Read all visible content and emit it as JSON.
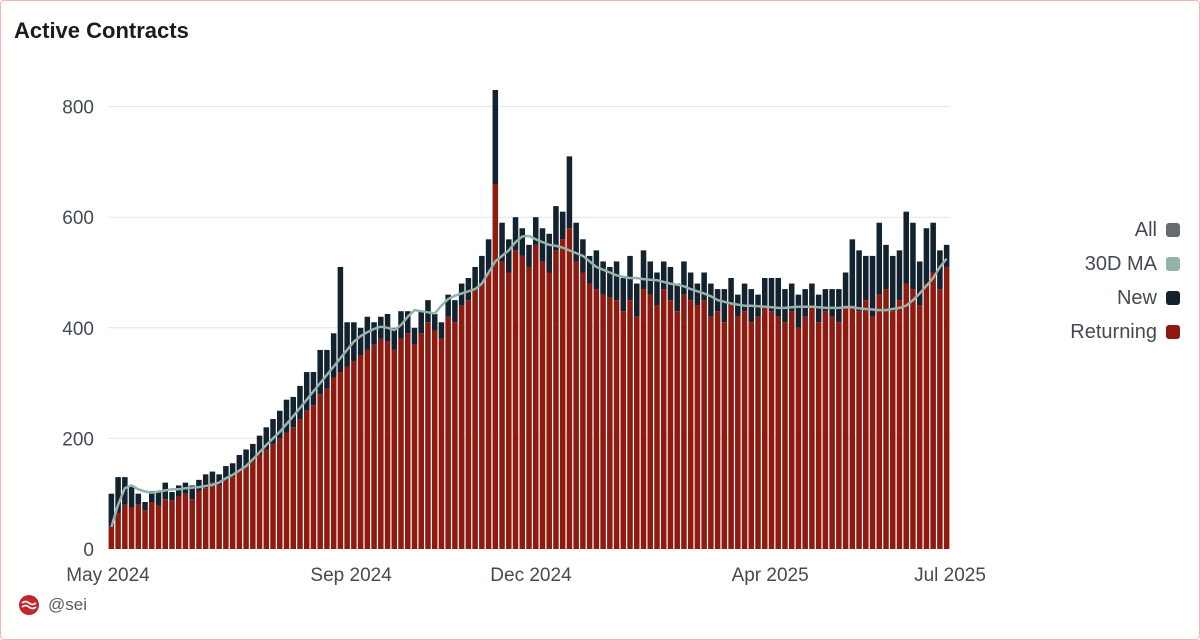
{
  "title": "Active Contracts",
  "footer": {
    "handle": "@sei",
    "logo_icon": "sei-logo-icon"
  },
  "colors": {
    "all": "#666b72",
    "ma": "#94b3ab",
    "new": "#13222f",
    "returning": "#8f1a10",
    "grid": "#e6e6e6"
  },
  "legend": [
    {
      "label": "All",
      "color": "#666b72"
    },
    {
      "label": "30D MA",
      "color": "#94b3ab"
    },
    {
      "label": "New",
      "color": "#13222f"
    },
    {
      "label": "Returning",
      "color": "#8f1a10"
    }
  ],
  "chart_data": {
    "type": "bar",
    "stacked": true,
    "granularity": "every 3 days",
    "x_start": "2024-05-01",
    "x_end": "2025-07-01",
    "x_ticks": [
      {
        "date": "2024-05-01",
        "label": "May 2024"
      },
      {
        "date": "2024-09-01",
        "label": "Sep 2024"
      },
      {
        "date": "2024-12-01",
        "label": "Dec 2024"
      },
      {
        "date": "2025-04-01",
        "label": "Apr 2025"
      },
      {
        "date": "2025-07-01",
        "label": "Jul 2025"
      }
    ],
    "y_ticks": [
      0,
      200,
      400,
      600,
      800
    ],
    "ylim": [
      0,
      830
    ],
    "grid": true,
    "legend_position": "right",
    "series": [
      {
        "name": "Returning",
        "values": [
          40,
          65,
          80,
          75,
          80,
          70,
          85,
          78,
          90,
          88,
          95,
          100,
          90,
          105,
          110,
          120,
          115,
          125,
          130,
          140,
          150,
          160,
          170,
          180,
          190,
          200,
          210,
          220,
          235,
          250,
          260,
          280,
          290,
          310,
          320,
          330,
          340,
          350,
          360,
          370,
          380,
          375,
          360,
          380,
          390,
          370,
          390,
          410,
          395,
          380,
          420,
          410,
          440,
          450,
          470,
          480,
          500,
          660,
          520,
          500,
          540,
          530,
          510,
          550,
          520,
          500,
          540,
          560,
          580,
          520,
          500,
          480,
          470,
          460,
          455,
          450,
          430,
          450,
          420,
          470,
          460,
          440,
          470,
          450,
          430,
          460,
          450,
          440,
          450,
          420,
          430,
          410,
          440,
          420,
          430,
          410,
          420,
          440,
          430,
          420,
          410,
          430,
          400,
          420,
          440,
          410,
          430,
          420,
          410,
          440,
          440,
          430,
          450,
          420,
          460,
          470,
          430,
          450,
          480,
          470,
          440,
          480,
          500,
          470,
          510
        ]
      },
      {
        "name": "New",
        "values": [
          60,
          65,
          50,
          40,
          20,
          15,
          20,
          25,
          30,
          15,
          20,
          20,
          25,
          20,
          25,
          20,
          20,
          25,
          25,
          30,
          30,
          30,
          35,
          40,
          45,
          50,
          60,
          55,
          60,
          70,
          60,
          80,
          70,
          80,
          190,
          80,
          70,
          50,
          60,
          40,
          40,
          50,
          40,
          50,
          40,
          30,
          40,
          40,
          30,
          30,
          40,
          40,
          40,
          40,
          40,
          50,
          60,
          170,
          70,
          60,
          60,
          50,
          40,
          50,
          60,
          70,
          80,
          50,
          130,
          70,
          60,
          50,
          70,
          60,
          55,
          70,
          60,
          80,
          60,
          70,
          60,
          60,
          50,
          60,
          50,
          60,
          50,
          40,
          50,
          60,
          40,
          60,
          50,
          40,
          50,
          60,
          40,
          50,
          60,
          70,
          60,
          50,
          60,
          50,
          40,
          50,
          40,
          50,
          60,
          60,
          120,
          110,
          80,
          110,
          130,
          80,
          100,
          90,
          130,
          120,
          80,
          100,
          90,
          70,
          40
        ]
      }
    ],
    "moving_average": {
      "name": "30D MA",
      "values": [
        40,
        80,
        110,
        115,
        108,
        104,
        102,
        104,
        106,
        108,
        108,
        110,
        111,
        112,
        114,
        116,
        120,
        128,
        134,
        142,
        150,
        162,
        175,
        188,
        200,
        212,
        226,
        240,
        255,
        270,
        285,
        300,
        315,
        330,
        345,
        360,
        375,
        385,
        392,
        398,
        402,
        400,
        396,
        405,
        420,
        432,
        430,
        428,
        426,
        440,
        452,
        458,
        462,
        466,
        470,
        480,
        500,
        520,
        530,
        540,
        555,
        565,
        566,
        560,
        555,
        550,
        548,
        545,
        540,
        535,
        530,
        520,
        510,
        505,
        500,
        495,
        492,
        490,
        490,
        488,
        487,
        486,
        483,
        480,
        478,
        475,
        470,
        466,
        462,
        457,
        450,
        447,
        444,
        442,
        440,
        440,
        439,
        438,
        437,
        436,
        436,
        437,
        438,
        438,
        438,
        437,
        436,
        436,
        436,
        437,
        437,
        435,
        434,
        433,
        432,
        432,
        434,
        436,
        440,
        450,
        462,
        476,
        490,
        510,
        525
      ]
    }
  }
}
